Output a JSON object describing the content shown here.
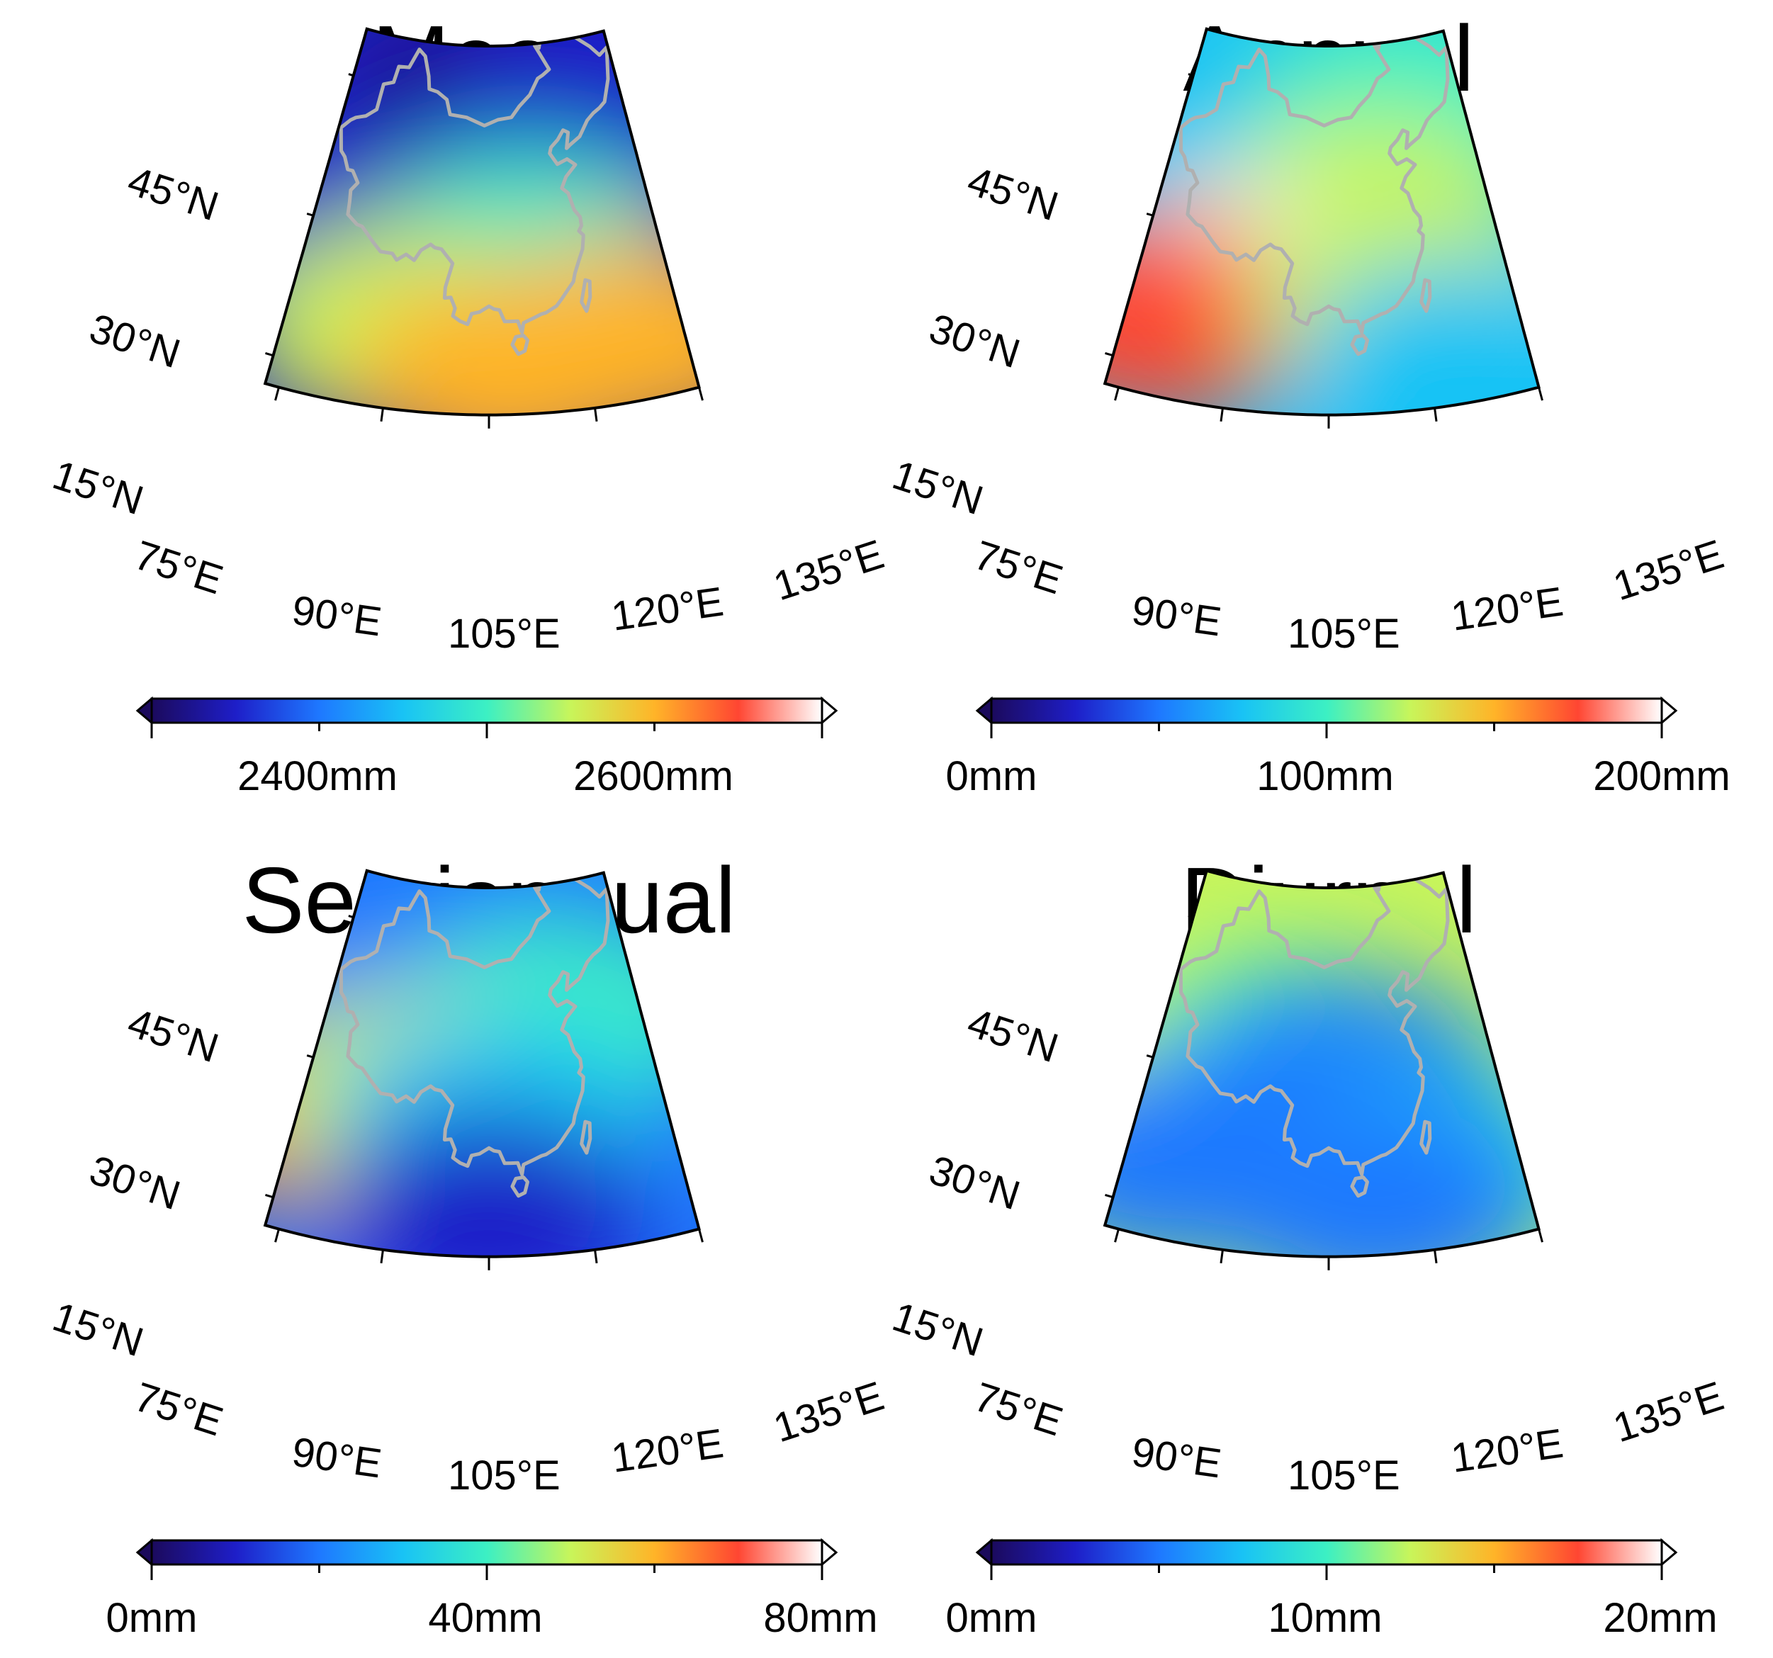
{
  "figure": {
    "panels": [
      {
        "id": "mean",
        "title": "Mean",
        "colorbar": {
          "labels": [
            "2400mm",
            "2600mm"
          ]
        },
        "fields": [
          {
            "lon": 90,
            "lat": 37,
            "c": 0.08
          },
          {
            "lon": 110,
            "lat": 44,
            "c": 0.06
          },
          {
            "lon": 80,
            "lat": 30,
            "c": 0.12
          },
          {
            "lon": 125,
            "lat": 42,
            "c": 0.18
          },
          {
            "lon": 112,
            "lat": 28,
            "c": 0.48
          },
          {
            "lon": 90,
            "lat": 20,
            "c": 0.58
          },
          {
            "lon": 108,
            "lat": 16,
            "c": 0.78
          },
          {
            "lon": 128,
            "lat": 18,
            "c": 0.72
          }
        ]
      },
      {
        "id": "annual",
        "title": "Annual",
        "colorbar": {
          "labels": [
            "0mm",
            "100mm",
            "200mm"
          ]
        },
        "fields": [
          {
            "lon": 95,
            "lat": 40,
            "c": 0.32
          },
          {
            "lon": 125,
            "lat": 44,
            "c": 0.48
          },
          {
            "lon": 112,
            "lat": 32,
            "c": 0.62
          },
          {
            "lon": 86,
            "lat": 24,
            "c": 0.95
          },
          {
            "lon": 78,
            "lat": 20,
            "c": 0.86
          },
          {
            "lon": 118,
            "lat": 24,
            "c": 0.66
          },
          {
            "lon": 125,
            "lat": 16,
            "c": 0.42
          }
        ]
      },
      {
        "id": "semiannual",
        "title": "Semiannual",
        "colorbar": {
          "labels": [
            "0mm",
            "40mm",
            "80mm"
          ]
        },
        "fields": [
          {
            "lon": 95,
            "lat": 42,
            "c": 0.3
          },
          {
            "lon": 120,
            "lat": 36,
            "c": 0.5
          },
          {
            "lon": 77,
            "lat": 25,
            "c": 0.85
          },
          {
            "lon": 90,
            "lat": 28,
            "c": 0.65
          },
          {
            "lon": 105,
            "lat": 26,
            "c": 0.34
          },
          {
            "lon": 105,
            "lat": 16,
            "c": 0.08
          }
        ]
      },
      {
        "id": "diurnal",
        "title": "Diurnal",
        "colorbar": {
          "labels": [
            "0mm",
            "10mm",
            "20mm"
          ]
        },
        "fields": [
          {
            "lon": 88,
            "lat": 30,
            "c": 0.62
          },
          {
            "lon": 98,
            "lat": 32,
            "c": 0.5
          },
          {
            "lon": 100,
            "lat": 26,
            "c": 0.42
          },
          {
            "lon": 108,
            "lat": 30,
            "c": 0.3
          },
          {
            "lon": 80,
            "lat": 20,
            "c": 0.22
          },
          {
            "lon": 120,
            "lat": 20,
            "c": 0.35
          },
          {
            "lon": 112,
            "lat": 17,
            "c": 0.28
          }
        ]
      }
    ],
    "lat_labels": [
      "45°N",
      "30°N",
      "15°N"
    ],
    "lon_labels": [
      "75°E",
      "90°E",
      "105°E",
      "120°E",
      "135°E"
    ],
    "lat_values": [
      45,
      30,
      15
    ],
    "lon_values": [
      75,
      90,
      105,
      120,
      135
    ],
    "country_border": "China",
    "colors": {
      "border": "#b0b0b0",
      "colormap": [
        "#1b0a5c",
        "#1e1ec8",
        "#1e78ff",
        "#19c3f5",
        "#3cf0c3",
        "#c8f55a",
        "#ffb428",
        "#ff4632",
        "#ffffff"
      ]
    }
  }
}
